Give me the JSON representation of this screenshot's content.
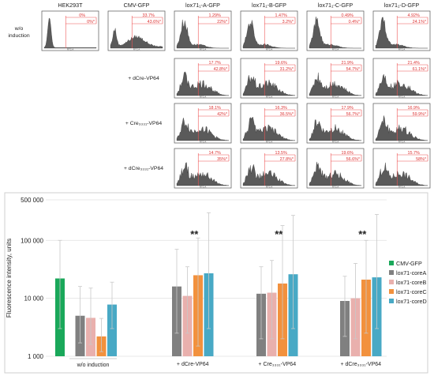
{
  "flow": {
    "columns": [
      "HEK293T",
      "CMV-GFP",
      "lox71₁-A-GFP",
      "lox71₁-B-GFP",
      "lox71₁-C-GFP",
      "lox71₁-D-GFP"
    ],
    "rows": [
      {
        "label": "w/o induction",
        "cells": [
          {
            "col": 0,
            "upper": "0%",
            "lower": "0%*"
          },
          {
            "col": 1,
            "upper": "33.7%",
            "lower": "43.6%*"
          },
          {
            "col": 2,
            "upper": "1.29%",
            "lower": "22%*"
          },
          {
            "col": 3,
            "upper": "1.47%",
            "lower": "3.2%*"
          },
          {
            "col": 4,
            "upper": "0.49%",
            "lower": "0.4%*"
          },
          {
            "col": 5,
            "upper": "4.92%",
            "lower": "24.1%*"
          }
        ]
      },
      {
        "label": "+ dCre-VP64",
        "cells": [
          {
            "col": 2,
            "upper": "17.7%",
            "lower": "42.8%*"
          },
          {
            "col": 3,
            "upper": "19.6%",
            "lower": "31.2%*"
          },
          {
            "col": 4,
            "upper": "21.9%",
            "lower": "54.7%*"
          },
          {
            "col": 5,
            "upper": "21.4%",
            "lower": "61.1%*"
          }
        ]
      },
      {
        "label": "+ Cre₃₃₃₁-VP64",
        "cells": [
          {
            "col": 2,
            "upper": "18.1%",
            "lower": "42%*"
          },
          {
            "col": 3,
            "upper": "16.3%",
            "lower": "36.5%*"
          },
          {
            "col": 4,
            "upper": "17.9%",
            "lower": "56.7%*"
          },
          {
            "col": 5,
            "upper": "16.9%",
            "lower": "59.9%*"
          }
        ]
      },
      {
        "label": "+ dCre₃₃₃₁-VP64",
        "cells": [
          {
            "col": 2,
            "upper": "14.7%",
            "lower": "35%*"
          },
          {
            "col": 3,
            "upper": "13.5%",
            "lower": "27.8%*"
          },
          {
            "col": 4,
            "upper": "19.6%",
            "lower": "56.6%*"
          },
          {
            "col": 5,
            "upper": "15.7%",
            "lower": "58%*"
          }
        ]
      }
    ],
    "axis_label": "FITC-A"
  },
  "chart_data": {
    "type": "bar",
    "ylabel": "Fluorescence intensity, units",
    "yscale": "log",
    "ylim": [
      1000,
      500000
    ],
    "yticks": [
      1000,
      10000,
      100000,
      500000
    ],
    "ytick_labels": [
      "1 000",
      "10 000",
      "100 000",
      "500 000"
    ],
    "grid": true,
    "legend_position": "right",
    "groups": [
      {
        "label": "w/o induction",
        "significance": "",
        "bars": [
          {
            "series": "CMV-GFP",
            "value": 22000,
            "err_low": 3000,
            "err_high": 100000
          },
          {
            "series": "lox71-coreA",
            "value": 5000,
            "err_low": 1700,
            "err_high": 16000
          },
          {
            "series": "lox71-coreB",
            "value": 4600,
            "err_low": 1600,
            "err_high": 15000
          },
          {
            "series": "lox71-coreC",
            "value": 2200,
            "err_low": 1200,
            "err_high": 4500
          },
          {
            "series": "lox71-coreD",
            "value": 7800,
            "err_low": 3000,
            "err_high": 19000
          }
        ]
      },
      {
        "label": "+ dCre-VP64",
        "significance": "**",
        "bars": [
          {
            "series": "lox71-coreA",
            "value": 16000,
            "err_low": 2500,
            "err_high": 70000
          },
          {
            "series": "lox71-coreB",
            "value": 11000,
            "err_low": 2500,
            "err_high": 35000
          },
          {
            "series": "lox71-coreC",
            "value": 25000,
            "err_low": 1500,
            "err_high": 110000
          },
          {
            "series": "lox71-coreD",
            "value": 27000,
            "err_low": 3000,
            "err_high": 300000
          }
        ]
      },
      {
        "label": "+ Cre₃₃₃₁-VP64",
        "significance": "**",
        "bars": [
          {
            "series": "lox71-coreA",
            "value": 12000,
            "err_low": 2000,
            "err_high": 35000
          },
          {
            "series": "lox71-coreB",
            "value": 12500,
            "err_low": 2000,
            "err_high": 45000
          },
          {
            "series": "lox71-coreC",
            "value": 18000,
            "err_low": 2000,
            "err_high": 180000
          },
          {
            "series": "lox71-coreD",
            "value": 26000,
            "err_low": 3000,
            "err_high": 270000
          }
        ]
      },
      {
        "label": "+ dCre₃₃₃₁-VP64",
        "significance": "**",
        "bars": [
          {
            "series": "lox71-coreA",
            "value": 9000,
            "err_low": 2200,
            "err_high": 24000
          },
          {
            "series": "lox71-coreB",
            "value": 10000,
            "err_low": 2000,
            "err_high": 40000
          },
          {
            "series": "lox71-coreC",
            "value": 21000,
            "err_low": 2500,
            "err_high": 100000
          },
          {
            "series": "lox71-coreD",
            "value": 23000,
            "err_low": 3000,
            "err_high": 280000
          }
        ]
      }
    ],
    "series": [
      {
        "name": "CMV-GFP",
        "color": "#1aa85a"
      },
      {
        "name": "lox71-coreA",
        "color": "#808080"
      },
      {
        "name": "lox71-coreB",
        "color": "#e9b0ad"
      },
      {
        "name": "lox71-coreC",
        "color": "#f2913d"
      },
      {
        "name": "lox71-coreD",
        "color": "#48a9c5"
      }
    ]
  }
}
